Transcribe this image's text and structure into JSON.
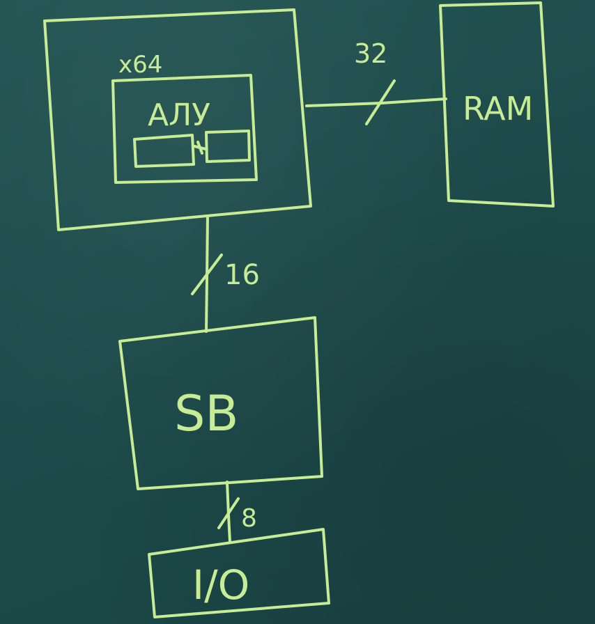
{
  "diagram": {
    "chalk_color": "#c8ec96",
    "board_color": "#1f4e4e",
    "blocks": {
      "cpu": {
        "name_label": "x64"
      },
      "alu": {
        "label": "АЛУ"
      },
      "ram": {
        "label": "RAM"
      },
      "south_bridge": {
        "label": "SB"
      },
      "io": {
        "label": "I/O"
      }
    },
    "buses": {
      "cpu_ram": {
        "width": "32"
      },
      "cpu_sb": {
        "width": "16"
      },
      "sb_io": {
        "width": "8"
      }
    }
  }
}
